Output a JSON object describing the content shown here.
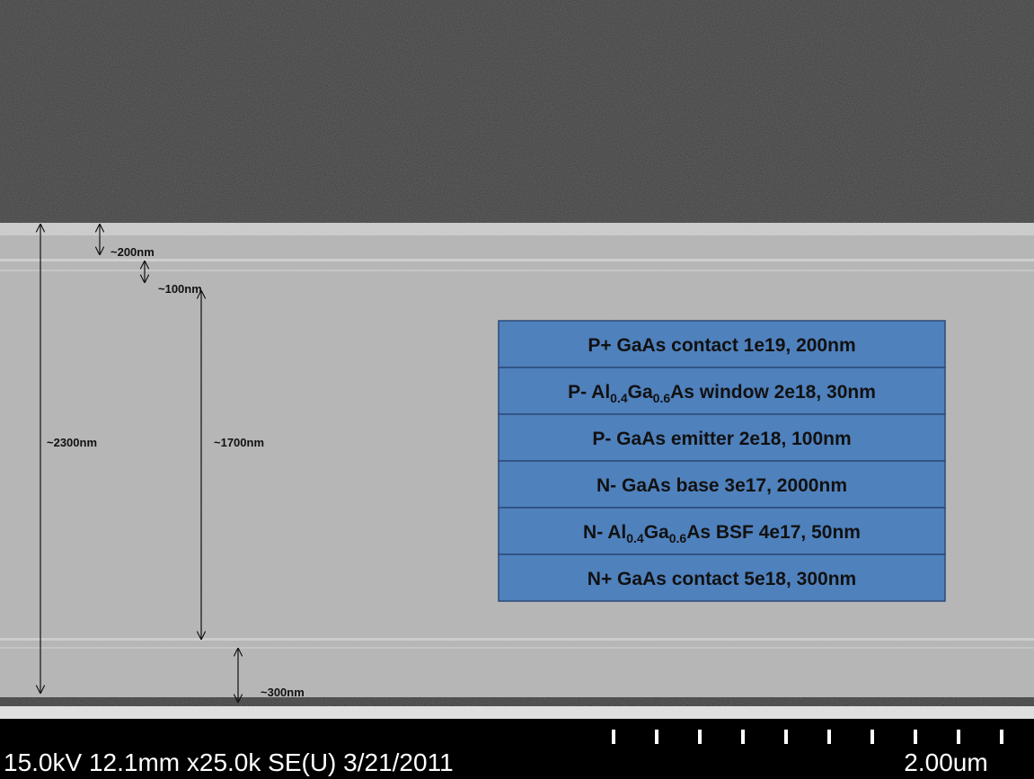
{
  "annotations": [
    "~200nm",
    "~100nm",
    "~2300nm",
    "~1700nm",
    "~300nm"
  ],
  "layers": [
    [
      {
        "text": "P+ GaAs contact 1e19, 200nm"
      }
    ],
    [
      {
        "text": "P- Al"
      },
      {
        "sub": "0.4"
      },
      {
        "text": "Ga"
      },
      {
        "sub": "0.6"
      },
      {
        "text": "As window 2e18, 30nm"
      }
    ],
    [
      {
        "text": "P- GaAs emitter 2e18, 100nm"
      }
    ],
    [
      {
        "text": "N- GaAs base 3e17, 2000nm"
      }
    ],
    [
      {
        "text": "N- Al"
      },
      {
        "sub": "0.4"
      },
      {
        "text": "Ga"
      },
      {
        "sub": "0.6"
      },
      {
        "text": "As BSF 4e17, 50nm"
      }
    ],
    [
      {
        "text": "N+ GaAs contact 5e18, 300nm"
      }
    ]
  ],
  "footer": {
    "info": "15.0kV 12.1mm x25.0k SE(U) 3/21/2011",
    "scale": "2.00um"
  }
}
